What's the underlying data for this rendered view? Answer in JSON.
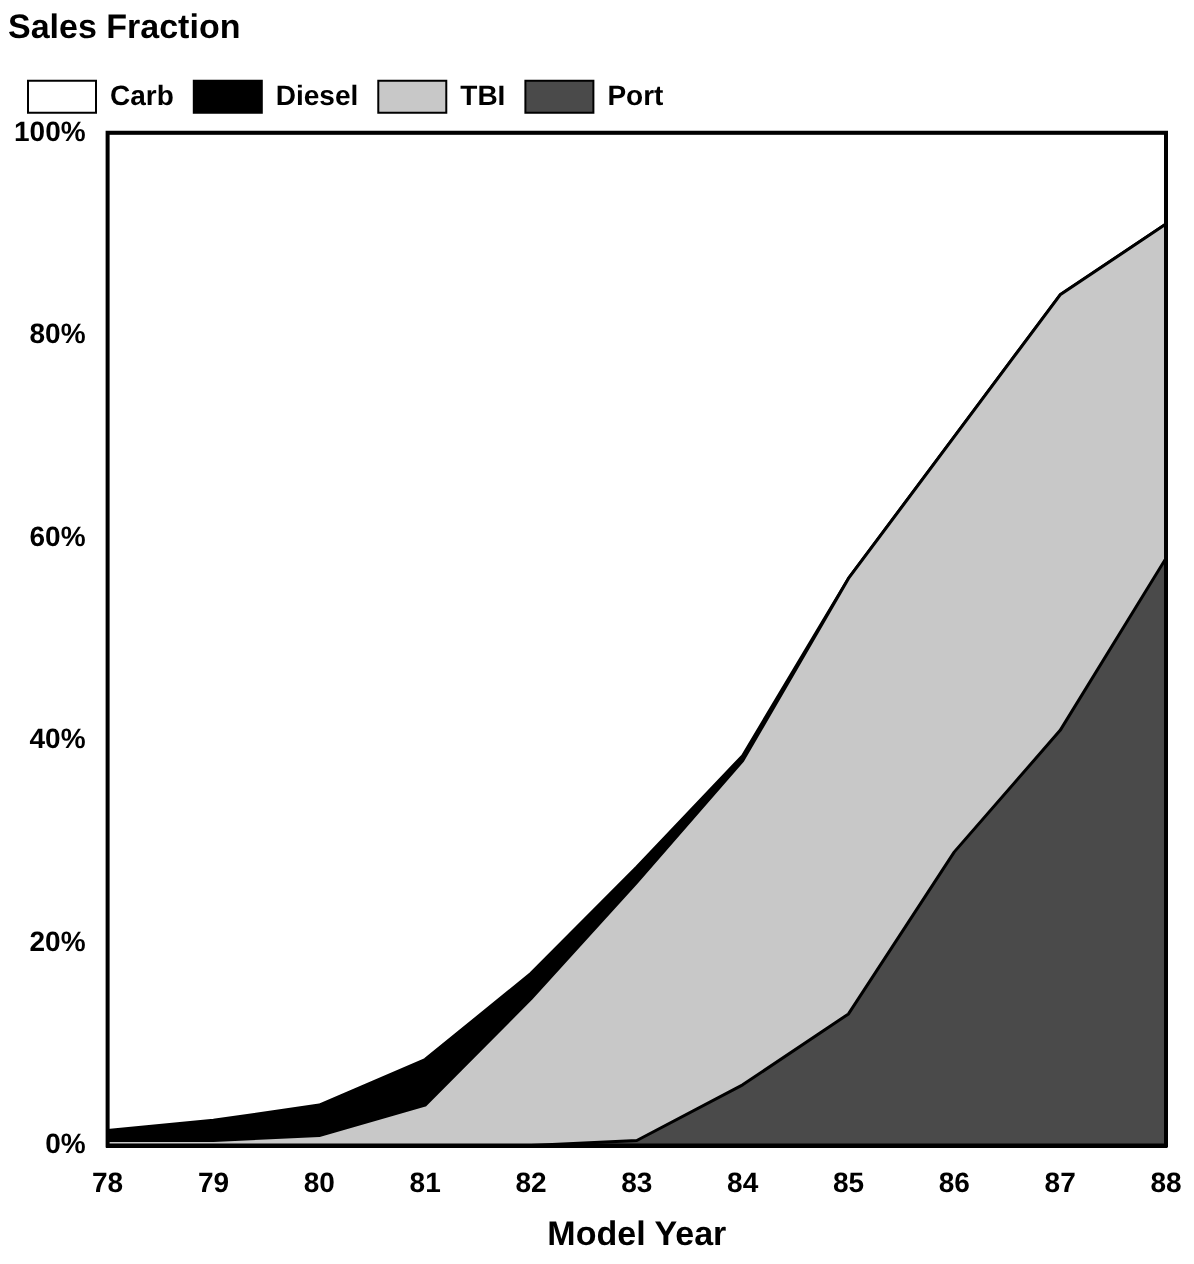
{
  "chart_data": {
    "type": "area",
    "title": "Sales Fraction",
    "xlabel": "Model Year",
    "stacked": true,
    "x": [
      78,
      79,
      80,
      81,
      82,
      83,
      84,
      85,
      86,
      87,
      88
    ],
    "series": [
      {
        "name": "Port",
        "color": "#4a4a4a",
        "values": [
          0,
          0,
          0,
          0,
          0,
          0.5,
          6,
          13,
          29,
          41,
          58
        ]
      },
      {
        "name": "TBI",
        "color": "#c8c8c8",
        "values": [
          0.5,
          0.5,
          1,
          4,
          14.5,
          25.5,
          32,
          43,
          41,
          43,
          33
        ]
      },
      {
        "name": "Diesel",
        "color": "#000000",
        "values": [
          1,
          2,
          3,
          4.5,
          2.5,
          1.5,
          0.5,
          0,
          0,
          0,
          0
        ]
      },
      {
        "name": "Carb",
        "color": "#ffffff",
        "values": [
          98.5,
          97.5,
          96,
          91.5,
          83,
          72.5,
          61.5,
          44,
          30,
          16,
          9
        ]
      }
    ],
    "xlim": [
      78,
      88
    ],
    "xticks": [
      78,
      79,
      80,
      81,
      82,
      83,
      84,
      85,
      86,
      87,
      88
    ],
    "ylim": [
      0,
      100
    ],
    "yticks": [
      {
        "value": 0,
        "label": "0%"
      },
      {
        "value": 20,
        "label": "20%"
      },
      {
        "value": 40,
        "label": "40%"
      },
      {
        "value": 60,
        "label": "60%"
      },
      {
        "value": 80,
        "label": "80%"
      },
      {
        "value": 100,
        "label": "100%"
      }
    ],
    "grid": false,
    "legend": "top left"
  }
}
